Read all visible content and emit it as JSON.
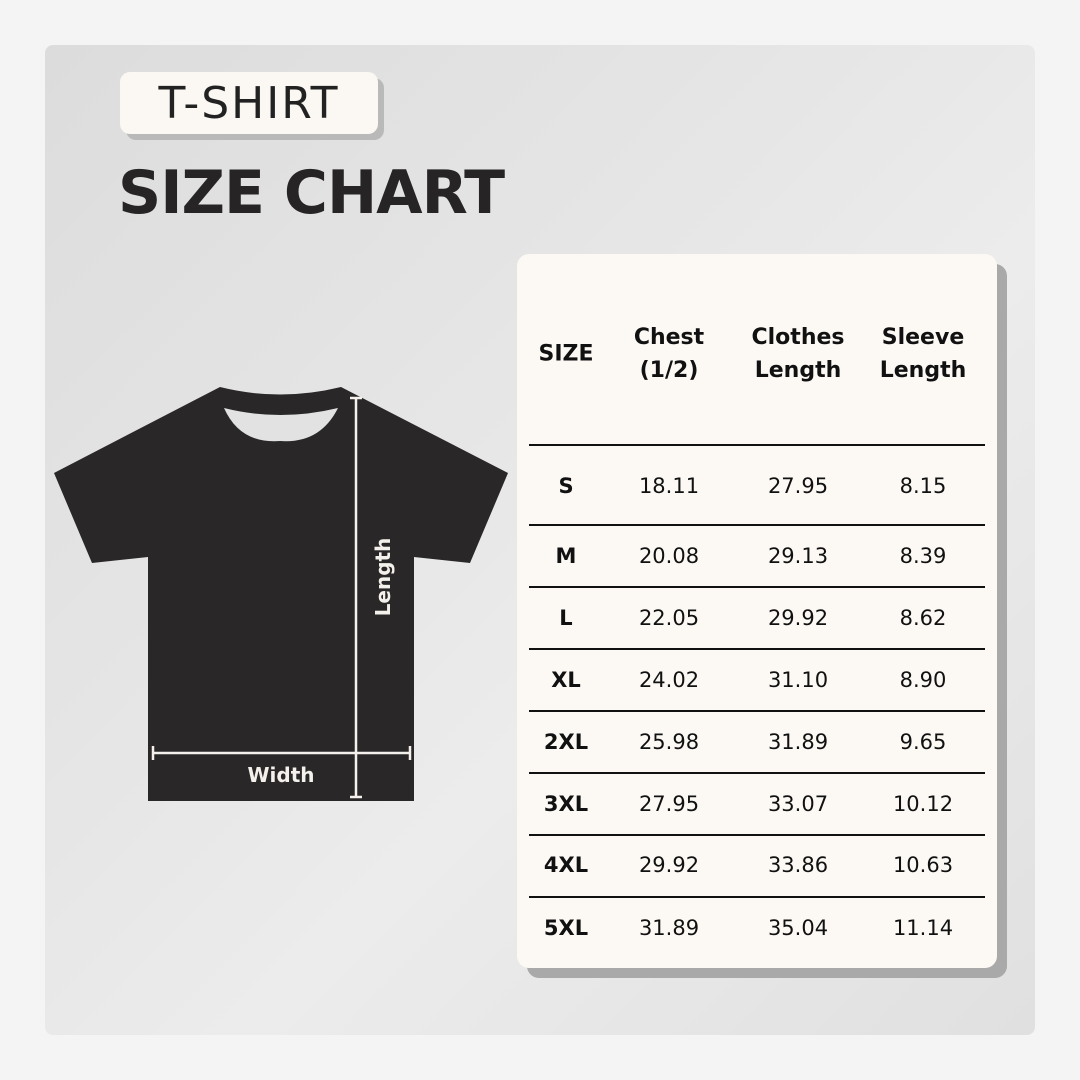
{
  "badge": "T-SHIRT",
  "title": "SIZE CHART",
  "diagram": {
    "length_label": "Length",
    "width_label": "Width"
  },
  "colors": {
    "shirt": "#292727",
    "card": "#fcf9f5",
    "text": "#111111"
  },
  "table": {
    "headers": [
      [
        "SIZE"
      ],
      [
        "Chest",
        "(1/2)"
      ],
      [
        "Clothes",
        "Length"
      ],
      [
        "Sleeve",
        "Length"
      ]
    ],
    "rows": [
      [
        "S",
        "18.11",
        "27.95",
        "8.15"
      ],
      [
        "M",
        "20.08",
        "29.13",
        "8.39"
      ],
      [
        "L",
        "22.05",
        "29.92",
        "8.62"
      ],
      [
        "XL",
        "24.02",
        "31.10",
        "8.90"
      ],
      [
        "2XL",
        "25.98",
        "31.89",
        "9.65"
      ],
      [
        "3XL",
        "27.95",
        "33.07",
        "10.12"
      ],
      [
        "4XL",
        "29.92",
        "33.86",
        "10.63"
      ],
      [
        "5XL",
        "31.89",
        "35.04",
        "11.14"
      ]
    ]
  }
}
